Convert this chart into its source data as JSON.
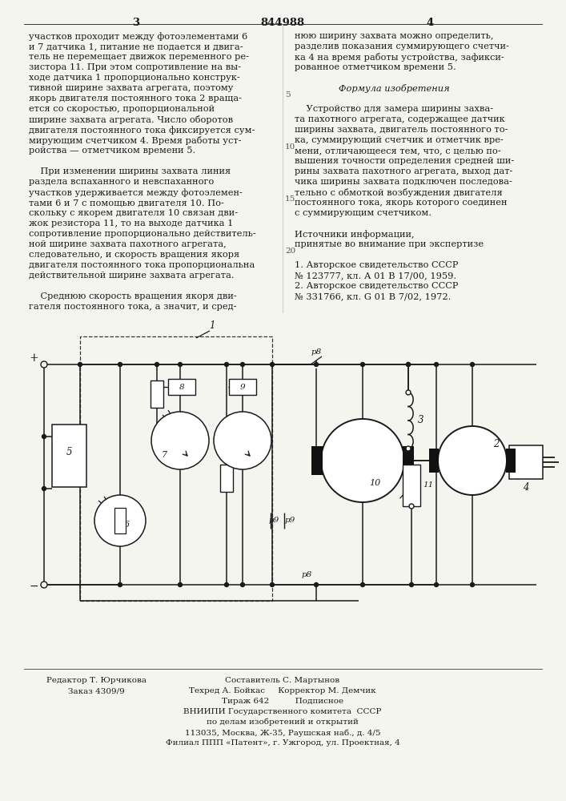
{
  "page_number_center": "844988",
  "page_col_left": "3",
  "page_col_right": "4",
  "bg_color": "#f5f5f0",
  "text_color": "#000000",
  "left_column_text": [
    "участков проходит между фотоэлементами 6",
    "и 7 датчика 1, питание не подается и двига-",
    "тель не перемещает движок переменного ре-",
    "зистора 11. При этом сопротивление на вы-",
    "ходе датчика 1 пропорционально конструк-",
    "тивной ширине захвата агрегата, поэтому",
    "якорь двигателя постоянного тока 2 враща-",
    "ется со скоростью, пропорциональной",
    "ширине захвата агрегата. Число оборотов",
    "двигателя постоянного тока фиксируется сум-",
    "мирующим счетчиком 4. Время работы уст-",
    "ройства — отметчиком времени 5.",
    "",
    "    При изменении ширины захвата линия",
    "раздела вспаханного и невспаханного",
    "участков удерживается между фотоэлемен-",
    "тами 6 и 7 с помощью двигателя 10. По-",
    "скольку с якорем двигателя 10 связан дви-",
    "жок резистора 11, то на выходе датчика 1",
    "сопротивление пропорционально действитель-",
    "ной ширине захвата пахотного агрегата,",
    "следовательно, и скорость вращения якоря",
    "двигателя постоянного тока пропорциональна",
    "действительной ширине захвата агрегата.",
    "",
    "    Среднюю скорость вращения якоря дви-",
    "гателя постоянного тока, а значит, и сред-"
  ],
  "right_column_text_line1": "нюю ширину захвата можно определить,",
  "right_column_text": [
    "нюю ширину захвата можно определить,",
    "разделив показания суммирующего счетчи-",
    "ка 4 на время работы устройства, зафикси-",
    "рованное отметчиком времени 5.",
    "",
    "Формула изобретения",
    "",
    "    Устройство для замера ширины захва-",
    "та пахотного агрегата, содержащее датчик",
    "ширины захвата, двигатель постоянного то-",
    "ка, суммирующий счетчик и отметчик вре-",
    "мени, отличающееся тем, что, с целью по-",
    "вышения точности определения средней ши-",
    "рины захвата пахотного агрегата, выход дат-",
    "чика ширины захвата подключен последова-",
    "тельно с обмоткой возбуждения двигателя",
    "постоянного тока, якорь которого соединен",
    "с суммирующим счетчиком.",
    "",
    "Источники информации,",
    "принятые во внимание при экспертизе",
    "",
    "1. Авторское свидетельство СССР",
    "№ 123777, кл. А 01 В 17/00, 1959.",
    "2. Авторское свидетельство СССР",
    "№ 331766, кл. G 01 В 7/02, 1972."
  ],
  "footer_left_col": [
    [
      "Редактор Т. Юрчикова",
      120
    ],
    [
      "Заказ 4309/9",
      120
    ]
  ],
  "footer_center_col": [
    [
      "Составитель С. Мартынов",
      353
    ],
    [
      "Техред А. Бойкас     Корректор М. Демчик",
      353
    ],
    [
      "Тираж 642          Подписное",
      353
    ],
    [
      "ВНИИПИ Государственного комитета  СССР",
      353
    ],
    [
      "по делам изобретений и открытий",
      353
    ],
    [
      "113035, Москва, Ж-35, Раушская наб., д. 4/5",
      353
    ],
    [
      "Филиал ППП «Патент», г. Ужгород, ул. Проектная, 4",
      353
    ]
  ]
}
